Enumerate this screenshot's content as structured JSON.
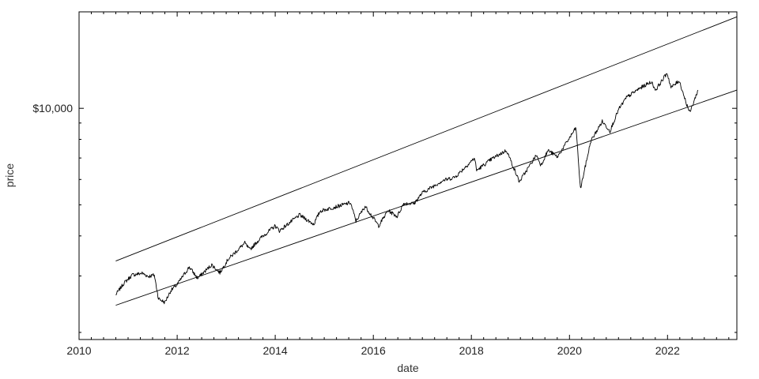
{
  "chart_data": {
    "type": "line",
    "title": "",
    "xlabel": "date",
    "ylabel": "price",
    "x_scale": "time",
    "y_scale": "log",
    "xlim": [
      "2010-01-01",
      "2023-06-01"
    ],
    "ylim": [
      1900,
      20000
    ],
    "grid": false,
    "x_ticks": [
      {
        "value": "2010-01-01",
        "label": "2010"
      },
      {
        "value": "2012-01-01",
        "label": "2012"
      },
      {
        "value": "2014-01-01",
        "label": "2014"
      },
      {
        "value": "2016-01-01",
        "label": "2016"
      },
      {
        "value": "2018-01-01",
        "label": "2018"
      },
      {
        "value": "2020-01-01",
        "label": "2020"
      },
      {
        "value": "2022-01-01",
        "label": "2022"
      }
    ],
    "y_ticks": [
      {
        "value": 10000,
        "label": "$10,000"
      }
    ],
    "series": [
      {
        "type": "line",
        "points": [
          [
            "2010-10-01",
            2620
          ],
          [
            "2010-12-01",
            2850
          ],
          [
            "2011-02-01",
            3020
          ],
          [
            "2011-04-15",
            3060
          ],
          [
            "2011-06-01",
            2990
          ],
          [
            "2011-07-15",
            3020
          ],
          [
            "2011-08-15",
            2550
          ],
          [
            "2011-10-01",
            2480
          ],
          [
            "2011-11-15",
            2700
          ],
          [
            "2012-01-01",
            2820
          ],
          [
            "2012-04-01",
            3200
          ],
          [
            "2012-06-01",
            2950
          ],
          [
            "2012-09-15",
            3250
          ],
          [
            "2012-11-15",
            3070
          ],
          [
            "2013-01-15",
            3380
          ],
          [
            "2013-05-20",
            3800
          ],
          [
            "2013-06-25",
            3620
          ],
          [
            "2013-09-15",
            3940
          ],
          [
            "2014-01-01",
            4300
          ],
          [
            "2014-02-01",
            4150
          ],
          [
            "2014-07-01",
            4650
          ],
          [
            "2014-10-15",
            4350
          ],
          [
            "2014-12-01",
            4780
          ],
          [
            "2015-05-20",
            5000
          ],
          [
            "2015-07-15",
            5080
          ],
          [
            "2015-08-25",
            4450
          ],
          [
            "2015-11-01",
            4950
          ],
          [
            "2016-02-10",
            4300
          ],
          [
            "2016-04-20",
            4800
          ],
          [
            "2016-06-27",
            4600
          ],
          [
            "2016-08-15",
            5050
          ],
          [
            "2016-11-01",
            5050
          ],
          [
            "2017-01-01",
            5450
          ],
          [
            "2017-06-01",
            5950
          ],
          [
            "2017-09-01",
            6100
          ],
          [
            "2018-01-25",
            7000
          ],
          [
            "2018-02-09",
            6400
          ],
          [
            "2018-06-01",
            6950
          ],
          [
            "2018-09-20",
            7400
          ],
          [
            "2018-12-24",
            5900
          ],
          [
            "2019-04-30",
            7150
          ],
          [
            "2019-06-03",
            6650
          ],
          [
            "2019-07-26",
            7400
          ],
          [
            "2019-10-03",
            7050
          ],
          [
            "2020-02-19",
            8700
          ],
          [
            "2020-03-23",
            5600
          ],
          [
            "2020-06-08",
            7900
          ],
          [
            "2020-09-02",
            9100
          ],
          [
            "2020-10-30",
            8500
          ],
          [
            "2021-01-01",
            9900
          ],
          [
            "2021-03-01",
            10800
          ],
          [
            "2021-06-01",
            11500
          ],
          [
            "2021-09-02",
            12100
          ],
          [
            "2021-10-04",
            11400
          ],
          [
            "2021-12-29",
            12900
          ],
          [
            "2022-01-27",
            11600
          ],
          [
            "2022-03-29",
            12200
          ],
          [
            "2022-05-20",
            10400
          ],
          [
            "2022-06-16",
            9700
          ],
          [
            "2022-08-16",
            11400
          ]
        ]
      },
      {
        "type": "line",
        "points": [
          [
            "2010-10-01",
            3340
          ],
          [
            "2023-06-01",
            19300
          ]
        ]
      },
      {
        "type": "line",
        "points": [
          [
            "2010-10-01",
            2430
          ],
          [
            "2023-06-01",
            11400
          ]
        ]
      }
    ]
  }
}
